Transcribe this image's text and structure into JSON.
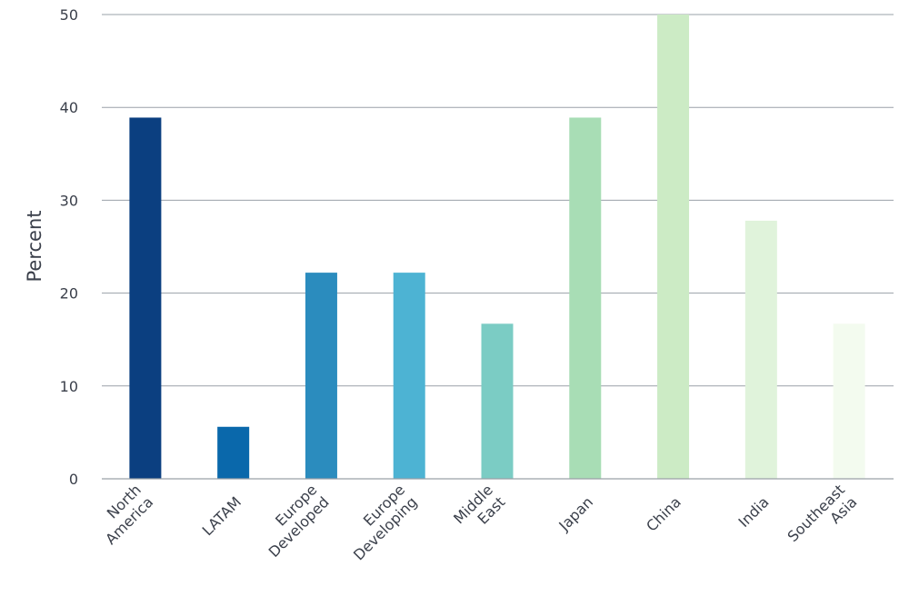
{
  "chart_data": {
    "type": "bar",
    "title": "",
    "xlabel": "",
    "ylabel": "Percent",
    "ylim": [
      0,
      50
    ],
    "yticks": [
      0,
      10,
      20,
      30,
      40,
      50
    ],
    "grid": true,
    "categories": [
      [
        "North",
        "America"
      ],
      [
        "LATAM"
      ],
      [
        "Europe",
        "Developed"
      ],
      [
        "Europe",
        "Developing"
      ],
      [
        "Middle",
        "East"
      ],
      [
        "Japan"
      ],
      [
        "China"
      ],
      [
        "India"
      ],
      [
        "Southeast",
        "Asia"
      ]
    ],
    "values": [
      38.9,
      5.6,
      22.2,
      22.2,
      16.7,
      38.9,
      50.0,
      27.8,
      16.7
    ],
    "colors": [
      "#0b3f80",
      "#0a68ab",
      "#2b8cbe",
      "#4db3d3",
      "#7bccc4",
      "#a8ddb5",
      "#ccebc5",
      "#e0f3db",
      "#f3fbef"
    ]
  }
}
